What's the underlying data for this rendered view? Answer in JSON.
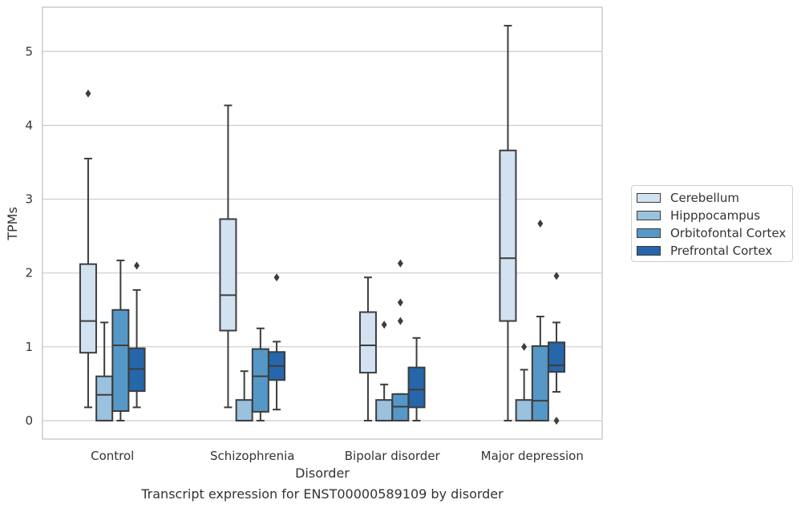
{
  "chart_data": {
    "type": "box",
    "title": "Transcript expression for ENST00000589109 by disorder",
    "xlabel": "Disorder",
    "ylabel": "TPMs",
    "ylim": [
      -0.25,
      5.6
    ],
    "yticks": [
      0,
      1,
      2,
      3,
      4,
      5
    ],
    "grid": "horizontal",
    "legend_position": "right",
    "categories": [
      "Control",
      "Schizophrenia",
      "Bipolar disorder",
      "Major depression"
    ],
    "series": [
      {
        "name": "Cerebellum",
        "color": "#d3e2f1",
        "boxes": [
          {
            "whisker_low": 0.18,
            "q1": 0.92,
            "median": 1.35,
            "q3": 2.12,
            "whisker_high": 3.55,
            "outliers": [
              4.43
            ]
          },
          {
            "whisker_low": 0.18,
            "q1": 1.22,
            "median": 1.7,
            "q3": 2.73,
            "whisker_high": 4.27,
            "outliers": []
          },
          {
            "whisker_low": 0.0,
            "q1": 0.65,
            "median": 1.02,
            "q3": 1.47,
            "whisker_high": 1.94,
            "outliers": []
          },
          {
            "whisker_low": 0.0,
            "q1": 1.35,
            "median": 2.2,
            "q3": 3.66,
            "whisker_high": 5.35,
            "outliers": []
          }
        ]
      },
      {
        "name": "Hipppocampus",
        "color": "#9ac1dd",
        "boxes": [
          {
            "whisker_low": 0.0,
            "q1": 0.0,
            "median": 0.35,
            "q3": 0.6,
            "whisker_high": 1.33,
            "outliers": []
          },
          {
            "whisker_low": 0.0,
            "q1": 0.0,
            "median": 0.0,
            "q3": 0.28,
            "whisker_high": 0.67,
            "outliers": []
          },
          {
            "whisker_low": 0.0,
            "q1": 0.0,
            "median": 0.0,
            "q3": 0.28,
            "whisker_high": 0.49,
            "outliers": [
              1.3
            ]
          },
          {
            "whisker_low": 0.0,
            "q1": 0.0,
            "median": 0.0,
            "q3": 0.28,
            "whisker_high": 0.69,
            "outliers": [
              1.0
            ]
          }
        ]
      },
      {
        "name": "Orbitofontal Cortex",
        "color": "#5598c8",
        "boxes": [
          {
            "whisker_low": 0.0,
            "q1": 0.13,
            "median": 1.02,
            "q3": 1.5,
            "whisker_high": 2.17,
            "outliers": []
          },
          {
            "whisker_low": 0.0,
            "q1": 0.12,
            "median": 0.6,
            "q3": 0.97,
            "whisker_high": 1.25,
            "outliers": []
          },
          {
            "whisker_low": 0.0,
            "q1": 0.0,
            "median": 0.19,
            "q3": 0.36,
            "whisker_high": 0.36,
            "outliers": [
              1.35,
              1.6,
              2.13
            ]
          },
          {
            "whisker_low": 0.0,
            "q1": 0.0,
            "median": 0.27,
            "q3": 1.01,
            "whisker_high": 1.41,
            "outliers": [
              2.67
            ]
          }
        ]
      },
      {
        "name": "Prefrontal Cortex",
        "color": "#2666aa",
        "boxes": [
          {
            "whisker_low": 0.18,
            "q1": 0.4,
            "median": 0.7,
            "q3": 0.98,
            "whisker_high": 1.77,
            "outliers": [
              2.1
            ]
          },
          {
            "whisker_low": 0.15,
            "q1": 0.55,
            "median": 0.74,
            "q3": 0.93,
            "whisker_high": 1.07,
            "outliers": [
              1.94
            ]
          },
          {
            "whisker_low": 0.0,
            "q1": 0.18,
            "median": 0.42,
            "q3": 0.72,
            "whisker_high": 1.12,
            "outliers": []
          },
          {
            "whisker_low": 0.39,
            "q1": 0.66,
            "median": 0.75,
            "q3": 1.06,
            "whisker_high": 1.33,
            "outliers": [
              0.0,
              1.96
            ]
          }
        ]
      }
    ]
  }
}
